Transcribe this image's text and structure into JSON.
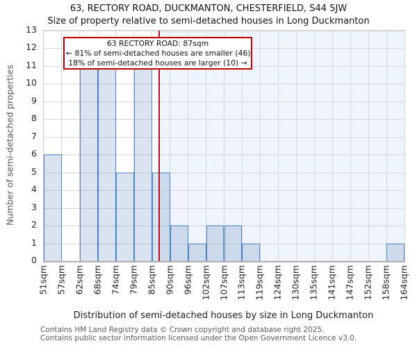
{
  "chart_data": {
    "type": "bar",
    "title": "63, RECTORY ROAD, DUCKMANTON, CHESTERFIELD, S44 5JW",
    "subtitle": "Size of property relative to semi-detached houses in Long Duckmanton",
    "xlabel": "Distribution of semi-detached houses by size in Long Duckmanton",
    "ylabel": "Number of semi-detached properties",
    "tick_values": [
      51,
      57,
      62,
      68,
      74,
      79,
      85,
      90,
      96,
      102,
      107,
      113,
      119,
      124,
      130,
      135,
      141,
      147,
      152,
      158,
      164
    ],
    "tick_labels": [
      "51sqm",
      "57sqm",
      "62sqm",
      "68sqm",
      "74sqm",
      "79sqm",
      "85sqm",
      "90sqm",
      "96sqm",
      "102sqm",
      "107sqm",
      "113sqm",
      "119sqm",
      "124sqm",
      "130sqm",
      "135sqm",
      "141sqm",
      "147sqm",
      "152sqm",
      "158sqm",
      "164sqm"
    ],
    "values": [
      6,
      0,
      11,
      11,
      5,
      11,
      5,
      2,
      1,
      2,
      2,
      1,
      0,
      0,
      0,
      0,
      0,
      0,
      0,
      1
    ],
    "ylim": [
      0,
      13
    ],
    "yticks": [
      0,
      1,
      2,
      3,
      4,
      5,
      6,
      7,
      8,
      9,
      10,
      11,
      12,
      13
    ],
    "grid": true,
    "legend": "none",
    "marker_value": 87,
    "colors": {
      "bar_fill": "rgba(79,129,189,0.21)",
      "bar_border": "#4a80c2",
      "marker_line": "#b01217",
      "annotation_border": "#c00000",
      "shade_right_of_marker": "#eff3fb",
      "grid": "#d7d7d7"
    }
  },
  "annotation": {
    "line1": "63 RECTORY ROAD: 87sqm",
    "line2": "← 81% of semi-detached houses are smaller (46)",
    "line3": "18% of semi-detached houses are larger (10) →"
  },
  "footer": {
    "line1": "Contains HM Land Registry data © Crown copyright and database right 2025.",
    "line2": "Contains public sector information licensed under the Open Government Licence v3.0."
  }
}
